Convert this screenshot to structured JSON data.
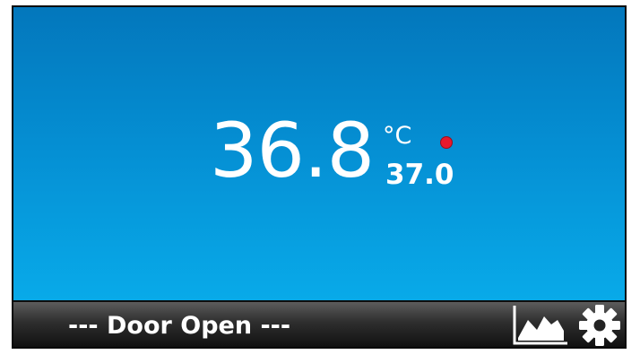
{
  "display": {
    "temperature": "36.8",
    "unit": "°C",
    "setpoint": "37.0",
    "status_dot_color": "#e8192c"
  },
  "bottom_bar": {
    "status_message": "--- Door Open ---",
    "chart_icon": "area-chart-icon",
    "settings_icon": "gear-icon"
  },
  "colors": {
    "screen_top": "#0377bc",
    "screen_bottom": "#08aae9",
    "bar_top": "#5c5c5c",
    "bar_bottom": "#111111"
  }
}
